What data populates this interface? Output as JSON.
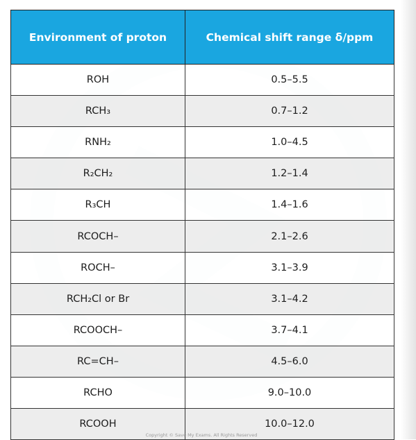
{
  "table": {
    "headers": [
      "Environment of proton",
      "Chemical shift range  δ/ppm"
    ],
    "rows": [
      [
        "ROH",
        "0.5–5.5"
      ],
      [
        "RCH₃",
        "0.7–1.2"
      ],
      [
        "RNH₂",
        "1.0–4.5"
      ],
      [
        "R₂CH₂",
        "1.2–1.4"
      ],
      [
        "R₃CH",
        "1.4–1.6"
      ],
      [
        "RCOCH–",
        "2.1–2.6"
      ],
      [
        "ROCH–",
        "3.1–3.9"
      ],
      [
        "RCH₂Cl or Br",
        "3.1–4.2"
      ],
      [
        "RCOOCH–",
        "3.7–4.1"
      ],
      [
        "RC=CH–",
        "4.5–6.0"
      ],
      [
        "RCHO",
        "9.0–10.0"
      ],
      [
        "RCOOH",
        "10.0–12.0"
      ]
    ]
  },
  "footer": {
    "copyright": "Copyright © Save My Exams. All Rights Reserved"
  },
  "colors": {
    "header_bg": "#1aa6e0",
    "border": "#333333",
    "alt_row": "#ececec"
  }
}
